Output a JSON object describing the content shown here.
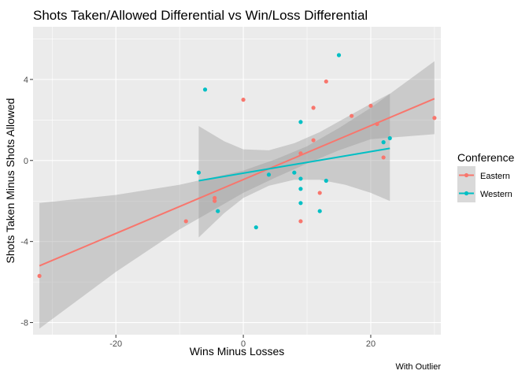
{
  "chart_data": {
    "type": "scatter",
    "title": "Shots Taken/Allowed Differential vs Win/Loss Differential",
    "xlabel": "Wins Minus Losses",
    "ylabel": "Shots Taken Minus Shots Allowed",
    "caption": "With Outlier",
    "xlim": [
      -33,
      31
    ],
    "ylim": [
      -8.6,
      6.6
    ],
    "x_ticks": [
      -20,
      0,
      20
    ],
    "y_ticks": [
      -8,
      -4,
      0,
      4
    ],
    "x_tick_labels": [
      "-20",
      "0",
      "20"
    ],
    "y_tick_labels": [
      "-8",
      "-4",
      "0",
      "4"
    ],
    "grid": true,
    "legend": {
      "title": "Conference",
      "position": "right"
    },
    "series": [
      {
        "name": "Eastern",
        "color": "#F8766D",
        "points": [
          [
            -32,
            -5.7
          ],
          [
            -9,
            -3.0
          ],
          [
            -4.5,
            -1.85
          ],
          [
            -4.5,
            -2.0
          ],
          [
            0,
            3.0
          ],
          [
            9,
            -3.0
          ],
          [
            9,
            0.35
          ],
          [
            11,
            2.6
          ],
          [
            11,
            1.0
          ],
          [
            12,
            -1.6
          ],
          [
            13,
            3.9
          ],
          [
            17,
            2.2
          ],
          [
            20,
            2.7
          ],
          [
            21,
            1.8
          ],
          [
            22,
            0.15
          ],
          [
            30,
            2.1
          ]
        ],
        "fit": {
          "x": [
            -32,
            30
          ],
          "y": [
            -5.2,
            3.05
          ]
        },
        "band": {
          "x": [
            -32,
            -20,
            -10,
            0,
            5,
            10,
            15,
            20,
            30
          ],
          "lower": [
            -8.3,
            -5.5,
            -3.4,
            -1.6,
            -0.85,
            -0.15,
            0.5,
            1.05,
            1.3
          ],
          "upper": [
            -2.1,
            -1.7,
            -1.2,
            -0.5,
            0.05,
            0.7,
            1.6,
            2.6,
            4.9
          ]
        }
      },
      {
        "name": "Western",
        "color": "#00BFC4",
        "points": [
          [
            -7,
            -0.6
          ],
          [
            -6,
            3.5
          ],
          [
            -4,
            -2.5
          ],
          [
            2,
            -3.3
          ],
          [
            4,
            -0.7
          ],
          [
            8,
            -0.6
          ],
          [
            9,
            1.9
          ],
          [
            9,
            -0.9
          ],
          [
            9,
            -1.4
          ],
          [
            9,
            -2.1
          ],
          [
            12,
            -2.5
          ],
          [
            13,
            -1.0
          ],
          [
            15,
            5.2
          ],
          [
            22,
            0.9
          ],
          [
            23,
            1.1
          ]
        ],
        "fit": {
          "x": [
            -7,
            23
          ],
          "y": [
            -1.0,
            0.6
          ]
        },
        "band": {
          "x": [
            -7,
            -3,
            0,
            4,
            8,
            12,
            16,
            20,
            23
          ],
          "lower": [
            -3.8,
            -2.6,
            -1.85,
            -1.25,
            -0.95,
            -0.95,
            -1.2,
            -1.6,
            -2.0
          ],
          "upper": [
            1.7,
            0.95,
            0.55,
            0.5,
            0.85,
            1.4,
            2.1,
            2.8,
            3.3
          ]
        }
      }
    ]
  }
}
